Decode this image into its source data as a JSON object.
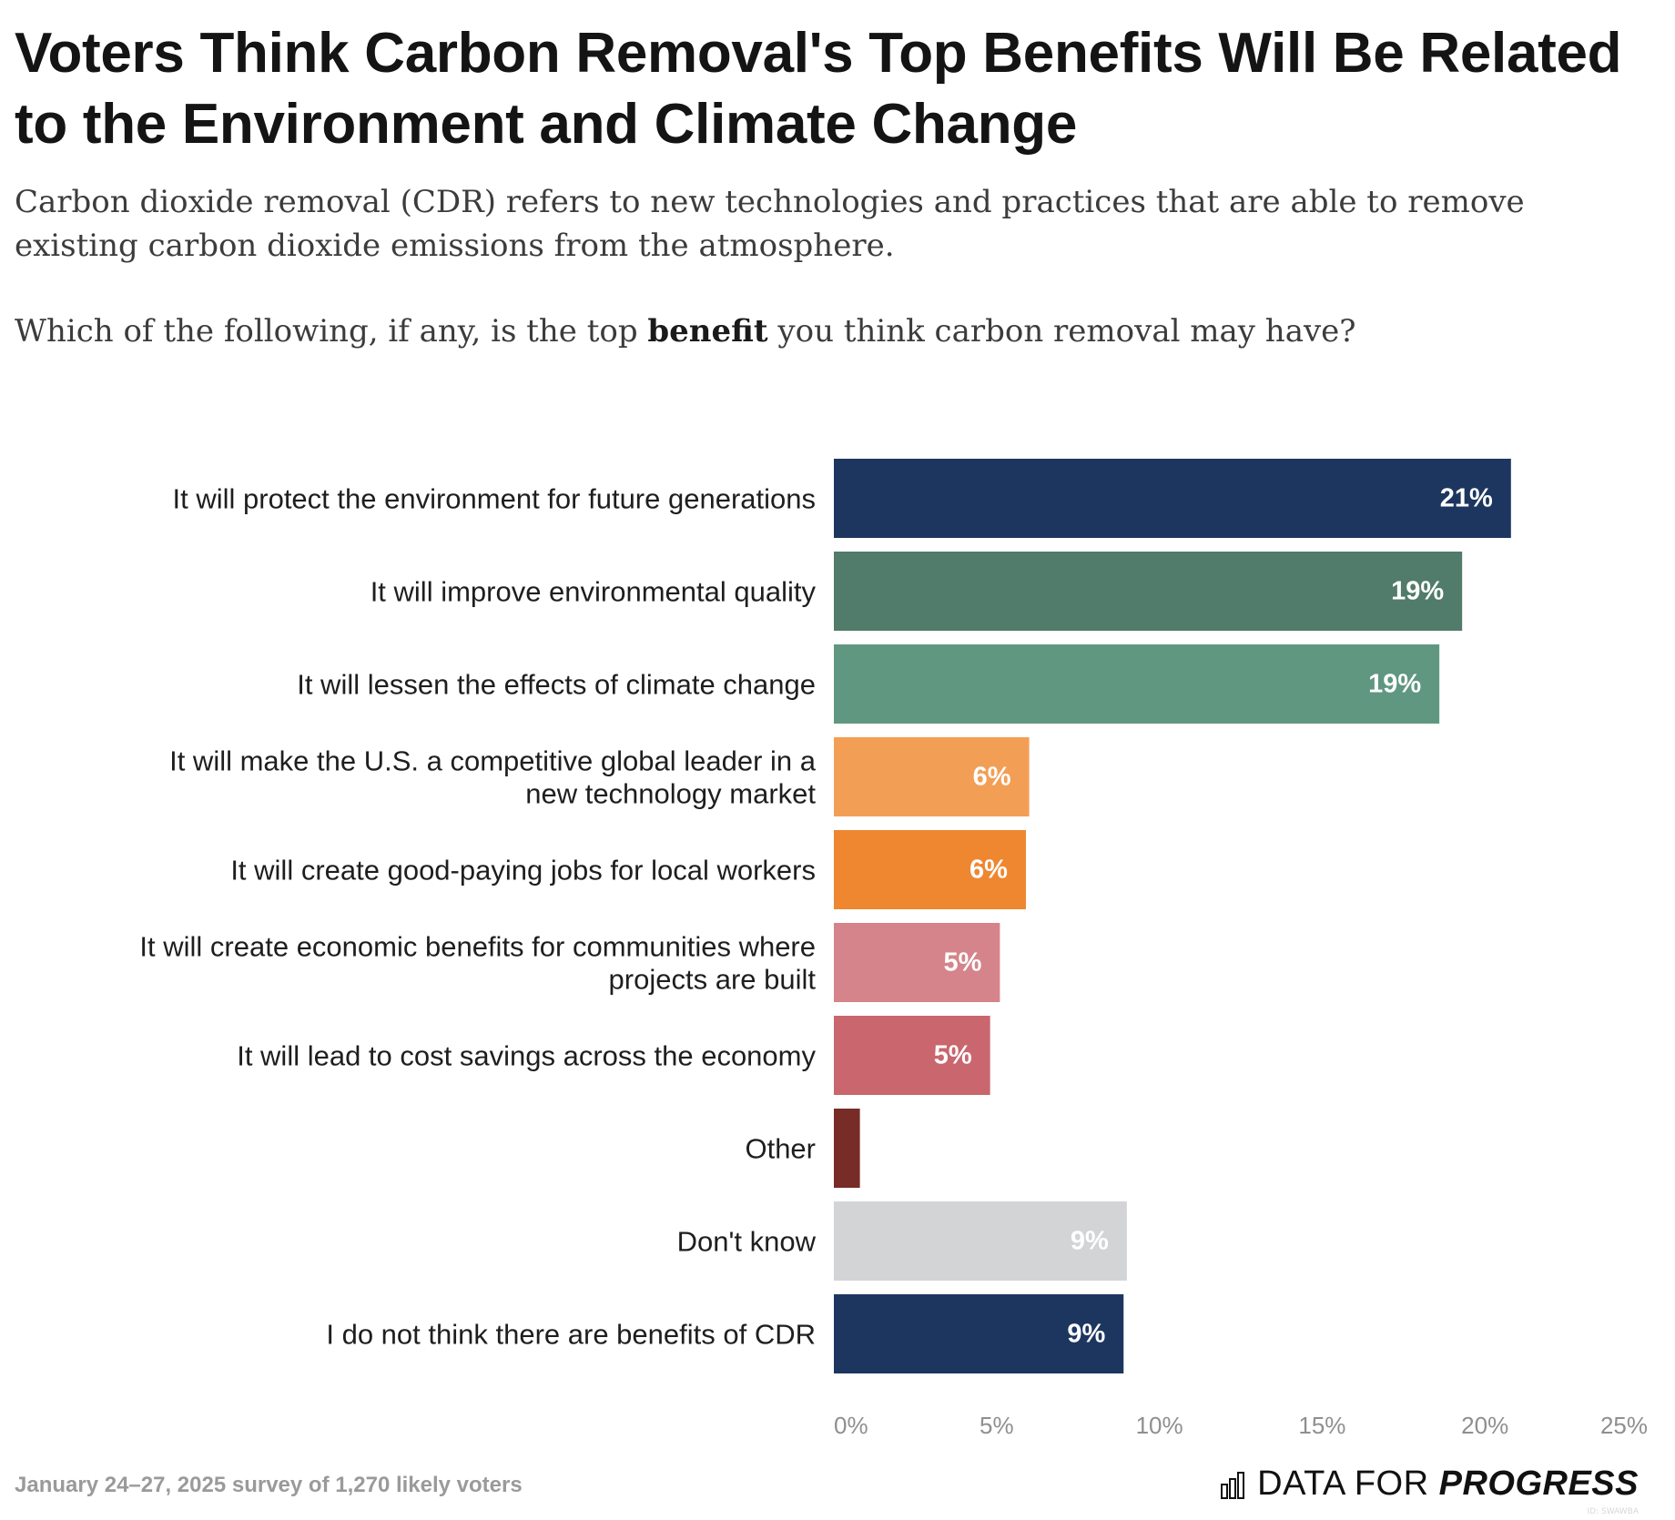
{
  "header": {
    "title": "Voters Think Carbon Removal's Top Benefits Will Be Related to the Environment and Climate Change",
    "subtitle": "Carbon dioxide removal (CDR) refers to new technologies and practices that are able to remove existing carbon dioxide emissions from the atmosphere.",
    "question_before": "Which of the following, if any, is the top ",
    "question_bold": "benefit",
    "question_after": " you think carbon removal may have?"
  },
  "chart_data": {
    "type": "bar",
    "orientation": "horizontal",
    "categories": [
      [
        "It will protect the environment for future generations"
      ],
      [
        "It will improve environmental quality"
      ],
      [
        "It will lessen the effects of climate change"
      ],
      [
        "It will make the U.S. a competitive global leader in a",
        "new technology market"
      ],
      [
        "It will create good-paying jobs for local workers"
      ],
      [
        "It will create economic benefits for communities where",
        "projects are built"
      ],
      [
        "It will lead to cost savings across the economy"
      ],
      [
        "Other"
      ],
      [
        "Don't know"
      ],
      [
        "I do not think there are benefits of CDR"
      ]
    ],
    "values": [
      20.8,
      19.3,
      18.6,
      6.0,
      5.9,
      5.1,
      4.8,
      0.8,
      9.0,
      8.9
    ],
    "data_labels": [
      "21%",
      "19%",
      "19%",
      "6%",
      "6%",
      "5%",
      "5%",
      "",
      "9%",
      "9%"
    ],
    "colors": [
      "#1c365f",
      "#517b6a",
      "#5f9781",
      "#f39e55",
      "#ee8730",
      "#d4848a",
      "#c9666e",
      "#772c27",
      "#d3d4d6",
      "#1c365f"
    ],
    "xlim": [
      0,
      25
    ],
    "xticks": [
      0,
      5,
      10,
      15,
      20,
      25
    ],
    "xtick_labels": [
      "0%",
      "5%",
      "10%",
      "15%",
      "20%",
      "25%"
    ],
    "xlabel": "",
    "ylabel": "",
    "grid": false
  },
  "footer": {
    "note": "January 24–27, 2025 survey of 1,270 likely voters",
    "brand_plain": "DATA FOR ",
    "brand_strong": "PROGRESS",
    "chart_id": "ID: SWAWBA"
  }
}
